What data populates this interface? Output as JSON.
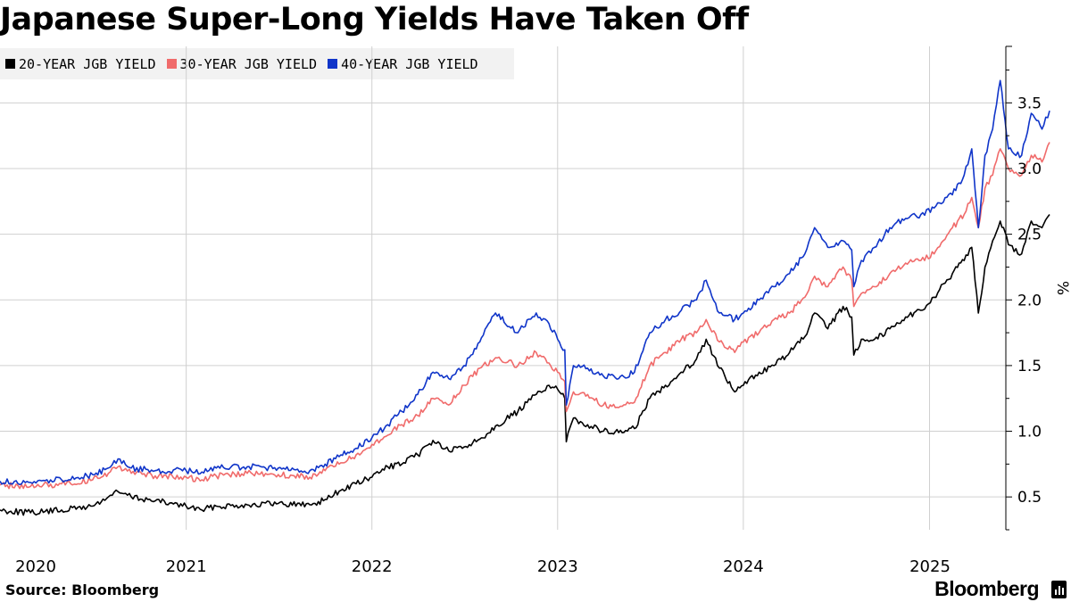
{
  "title": "Japanese Super-Long Yields Have Taken Off",
  "source": "Source: Bloomberg",
  "brand": "Bloomberg",
  "brand_icon": "bloomberg-terminal-icon",
  "colors": {
    "s20": "#000000",
    "s30": "#f06b6b",
    "s40": "#1035c9",
    "grid": "#d0d0d0",
    "legend_bg": "#f2f2f2"
  },
  "chart_data": {
    "type": "line",
    "title": "Japanese Super-Long Yields Have Taken Off",
    "ylabel": "%",
    "ylim": [
      0.25,
      3.93
    ],
    "xlim": [
      "2020-01-01",
      "2025-05-31"
    ],
    "y_ticks": [
      "0.5",
      "1.0",
      "1.5",
      "2.0",
      "2.5",
      "3.0",
      "3.5"
    ],
    "x_ticks": [
      {
        "label": "2020",
        "date": "2020-07-01"
      },
      {
        "label": "2021",
        "date": "2021-01-01"
      },
      {
        "label": "2022",
        "date": "2022-01-01"
      },
      {
        "label": "2023",
        "date": "2023-01-01"
      },
      {
        "label": "2024",
        "date": "2024-01-01"
      },
      {
        "label": "2025",
        "date": "2025-01-01"
      }
    ],
    "grid": "vertical",
    "legend_position": "top-left",
    "series": [
      {
        "name": "20-YEAR JGB YIELD",
        "key": "s20",
        "points": [
          [
            "2020-01-01",
            0.4
          ],
          [
            "2020-03-01",
            0.38
          ],
          [
            "2020-05-01",
            0.4
          ],
          [
            "2020-07-01",
            0.43
          ],
          [
            "2020-08-01",
            0.5
          ],
          [
            "2020-08-20",
            0.54
          ],
          [
            "2020-09-15",
            0.5
          ],
          [
            "2020-11-01",
            0.47
          ],
          [
            "2021-01-01",
            0.43
          ],
          [
            "2021-02-01",
            0.4
          ],
          [
            "2021-03-01",
            0.43
          ],
          [
            "2021-05-01",
            0.44
          ],
          [
            "2021-07-01",
            0.45
          ],
          [
            "2021-09-01",
            0.44
          ],
          [
            "2021-10-01",
            0.48
          ],
          [
            "2021-11-01",
            0.55
          ],
          [
            "2021-12-01",
            0.6
          ],
          [
            "2022-01-01",
            0.65
          ],
          [
            "2022-02-01",
            0.73
          ],
          [
            "2022-03-01",
            0.75
          ],
          [
            "2022-04-01",
            0.82
          ],
          [
            "2022-05-01",
            0.93
          ],
          [
            "2022-06-01",
            0.85
          ],
          [
            "2022-07-01",
            0.88
          ],
          [
            "2022-08-01",
            0.94
          ],
          [
            "2022-09-01",
            1.04
          ],
          [
            "2022-10-15",
            1.15
          ],
          [
            "2022-11-20",
            1.28
          ],
          [
            "2022-12-15",
            1.35
          ],
          [
            "2023-01-01",
            1.32
          ],
          [
            "2023-01-15",
            1.25
          ],
          [
            "2023-01-18",
            0.92
          ],
          [
            "2023-02-01",
            1.1
          ],
          [
            "2023-03-01",
            1.05
          ],
          [
            "2023-04-01",
            1.0
          ],
          [
            "2023-05-01",
            0.99
          ],
          [
            "2023-06-01",
            1.02
          ],
          [
            "2023-07-01",
            1.25
          ],
          [
            "2023-08-01",
            1.35
          ],
          [
            "2023-09-01",
            1.45
          ],
          [
            "2023-10-01",
            1.55
          ],
          [
            "2023-10-20",
            1.7
          ],
          [
            "2023-11-15",
            1.48
          ],
          [
            "2023-12-15",
            1.3
          ],
          [
            "2024-01-01",
            1.35
          ],
          [
            "2024-02-01",
            1.45
          ],
          [
            "2024-03-01",
            1.5
          ],
          [
            "2024-04-01",
            1.6
          ],
          [
            "2024-05-01",
            1.72
          ],
          [
            "2024-05-20",
            1.9
          ],
          [
            "2024-06-15",
            1.78
          ],
          [
            "2024-07-15",
            1.95
          ],
          [
            "2024-08-01",
            1.87
          ],
          [
            "2024-08-05",
            1.58
          ],
          [
            "2024-08-20",
            1.7
          ],
          [
            "2024-09-15",
            1.7
          ],
          [
            "2024-10-15",
            1.78
          ],
          [
            "2024-11-15",
            1.87
          ],
          [
            "2024-12-15",
            1.92
          ],
          [
            "2025-01-10",
            2.02
          ],
          [
            "2025-02-15",
            2.2
          ],
          [
            "2025-03-10",
            2.3
          ],
          [
            "2025-03-25",
            2.4
          ],
          [
            "2025-04-07",
            1.9
          ],
          [
            "2025-04-20",
            2.25
          ],
          [
            "2025-05-05",
            2.45
          ],
          [
            "2025-05-20",
            2.6
          ],
          [
            "2025-06-05",
            2.42
          ],
          [
            "2025-07-01",
            2.35
          ],
          [
            "2025-07-20",
            2.6
          ],
          [
            "2025-08-10",
            2.55
          ],
          [
            "2025-08-25",
            2.65
          ]
        ]
      },
      {
        "name": "30-YEAR JGB YIELD",
        "key": "s30",
        "points": [
          [
            "2020-01-01",
            0.59
          ],
          [
            "2020-03-01",
            0.58
          ],
          [
            "2020-05-01",
            0.6
          ],
          [
            "2020-07-01",
            0.63
          ],
          [
            "2020-08-01",
            0.68
          ],
          [
            "2020-08-20",
            0.73
          ],
          [
            "2020-09-15",
            0.68
          ],
          [
            "2020-11-01",
            0.66
          ],
          [
            "2021-01-01",
            0.65
          ],
          [
            "2021-02-01",
            0.63
          ],
          [
            "2021-03-01",
            0.66
          ],
          [
            "2021-05-01",
            0.68
          ],
          [
            "2021-07-01",
            0.67
          ],
          [
            "2021-09-01",
            0.65
          ],
          [
            "2021-10-01",
            0.7
          ],
          [
            "2021-11-01",
            0.76
          ],
          [
            "2021-12-01",
            0.82
          ],
          [
            "2022-01-01",
            0.9
          ],
          [
            "2022-02-01",
            0.97
          ],
          [
            "2022-03-01",
            1.05
          ],
          [
            "2022-04-01",
            1.12
          ],
          [
            "2022-05-01",
            1.25
          ],
          [
            "2022-06-01",
            1.2
          ],
          [
            "2022-07-01",
            1.35
          ],
          [
            "2022-08-01",
            1.48
          ],
          [
            "2022-09-01",
            1.56
          ],
          [
            "2022-10-15",
            1.5
          ],
          [
            "2022-11-20",
            1.6
          ],
          [
            "2022-12-15",
            1.52
          ],
          [
            "2023-01-01",
            1.45
          ],
          [
            "2023-01-15",
            1.38
          ],
          [
            "2023-01-18",
            1.15
          ],
          [
            "2023-02-01",
            1.3
          ],
          [
            "2023-03-01",
            1.28
          ],
          [
            "2023-04-01",
            1.2
          ],
          [
            "2023-05-01",
            1.18
          ],
          [
            "2023-06-01",
            1.22
          ],
          [
            "2023-07-01",
            1.5
          ],
          [
            "2023-08-01",
            1.6
          ],
          [
            "2023-09-01",
            1.7
          ],
          [
            "2023-10-01",
            1.75
          ],
          [
            "2023-10-20",
            1.85
          ],
          [
            "2023-11-15",
            1.68
          ],
          [
            "2023-12-15",
            1.6
          ],
          [
            "2024-01-01",
            1.68
          ],
          [
            "2024-02-01",
            1.75
          ],
          [
            "2024-03-01",
            1.85
          ],
          [
            "2024-04-01",
            1.9
          ],
          [
            "2024-05-01",
            2.02
          ],
          [
            "2024-05-20",
            2.18
          ],
          [
            "2024-06-15",
            2.1
          ],
          [
            "2024-07-15",
            2.25
          ],
          [
            "2024-08-01",
            2.15
          ],
          [
            "2024-08-05",
            1.95
          ],
          [
            "2024-08-20",
            2.05
          ],
          [
            "2024-09-15",
            2.1
          ],
          [
            "2024-10-15",
            2.2
          ],
          [
            "2024-11-15",
            2.28
          ],
          [
            "2024-12-15",
            2.3
          ],
          [
            "2025-01-10",
            2.35
          ],
          [
            "2025-02-15",
            2.55
          ],
          [
            "2025-03-10",
            2.65
          ],
          [
            "2025-03-25",
            2.78
          ],
          [
            "2025-04-07",
            2.55
          ],
          [
            "2025-04-20",
            2.85
          ],
          [
            "2025-05-05",
            2.95
          ],
          [
            "2025-05-20",
            3.15
          ],
          [
            "2025-06-05",
            3.0
          ],
          [
            "2025-07-01",
            2.95
          ],
          [
            "2025-07-20",
            3.1
          ],
          [
            "2025-08-10",
            3.05
          ],
          [
            "2025-08-25",
            3.2
          ]
        ]
      },
      {
        "name": "40-YEAR JGB YIELD",
        "key": "s40",
        "points": [
          [
            "2020-01-01",
            0.62
          ],
          [
            "2020-03-01",
            0.61
          ],
          [
            "2020-05-01",
            0.63
          ],
          [
            "2020-07-01",
            0.67
          ],
          [
            "2020-08-01",
            0.72
          ],
          [
            "2020-08-20",
            0.79
          ],
          [
            "2020-09-15",
            0.72
          ],
          [
            "2020-11-01",
            0.7
          ],
          [
            "2021-01-01",
            0.7
          ],
          [
            "2021-02-01",
            0.69
          ],
          [
            "2021-03-01",
            0.72
          ],
          [
            "2021-05-01",
            0.73
          ],
          [
            "2021-07-01",
            0.72
          ],
          [
            "2021-09-01",
            0.7
          ],
          [
            "2021-10-01",
            0.75
          ],
          [
            "2021-11-01",
            0.82
          ],
          [
            "2021-12-01",
            0.87
          ],
          [
            "2022-01-01",
            0.95
          ],
          [
            "2022-02-01",
            1.05
          ],
          [
            "2022-03-01",
            1.15
          ],
          [
            "2022-04-01",
            1.28
          ],
          [
            "2022-05-01",
            1.45
          ],
          [
            "2022-06-01",
            1.4
          ],
          [
            "2022-07-01",
            1.5
          ],
          [
            "2022-08-01",
            1.68
          ],
          [
            "2022-09-01",
            1.9
          ],
          [
            "2022-10-15",
            1.75
          ],
          [
            "2022-11-20",
            1.9
          ],
          [
            "2022-12-15",
            1.82
          ],
          [
            "2023-01-01",
            1.7
          ],
          [
            "2023-01-15",
            1.62
          ],
          [
            "2023-01-18",
            1.2
          ],
          [
            "2023-02-01",
            1.5
          ],
          [
            "2023-03-01",
            1.48
          ],
          [
            "2023-04-01",
            1.42
          ],
          [
            "2023-05-01",
            1.4
          ],
          [
            "2023-06-01",
            1.45
          ],
          [
            "2023-07-01",
            1.75
          ],
          [
            "2023-08-01",
            1.85
          ],
          [
            "2023-09-01",
            1.92
          ],
          [
            "2023-10-01",
            2.0
          ],
          [
            "2023-10-20",
            2.15
          ],
          [
            "2023-11-15",
            1.9
          ],
          [
            "2023-12-15",
            1.85
          ],
          [
            "2024-01-01",
            1.9
          ],
          [
            "2024-02-01",
            2.0
          ],
          [
            "2024-03-01",
            2.1
          ],
          [
            "2024-04-01",
            2.2
          ],
          [
            "2024-05-01",
            2.35
          ],
          [
            "2024-05-20",
            2.55
          ],
          [
            "2024-06-15",
            2.4
          ],
          [
            "2024-07-15",
            2.45
          ],
          [
            "2024-08-01",
            2.38
          ],
          [
            "2024-08-05",
            2.1
          ],
          [
            "2024-08-20",
            2.3
          ],
          [
            "2024-09-15",
            2.4
          ],
          [
            "2024-10-15",
            2.55
          ],
          [
            "2024-11-15",
            2.62
          ],
          [
            "2024-12-15",
            2.65
          ],
          [
            "2025-01-10",
            2.7
          ],
          [
            "2025-02-15",
            2.8
          ],
          [
            "2025-03-10",
            2.95
          ],
          [
            "2025-03-25",
            3.15
          ],
          [
            "2025-04-07",
            2.55
          ],
          [
            "2025-04-20",
            3.1
          ],
          [
            "2025-05-05",
            3.3
          ],
          [
            "2025-05-20",
            3.67
          ],
          [
            "2025-06-05",
            3.15
          ],
          [
            "2025-07-01",
            3.1
          ],
          [
            "2025-07-20",
            3.42
          ],
          [
            "2025-08-10",
            3.3
          ],
          [
            "2025-08-25",
            3.44
          ]
        ]
      }
    ]
  }
}
